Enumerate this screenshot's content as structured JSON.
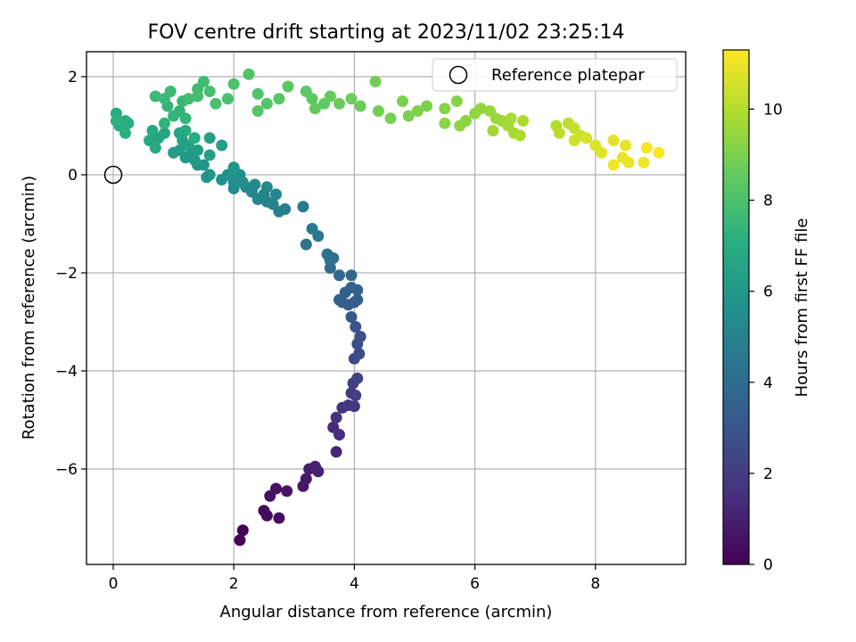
{
  "chart_data": {
    "type": "scatter",
    "title": "FOV centre drift starting at 2023/11/02 23:25:14",
    "xlabel": "Angular distance from reference (arcmin)",
    "ylabel": "Rotation from reference (arcmin)",
    "xlim": [
      -0.45,
      9.5
    ],
    "ylim": [
      -7.95,
      2.55
    ],
    "xticks": [
      0,
      2,
      4,
      6,
      8
    ],
    "yticks": [
      -6,
      -4,
      -2,
      0,
      2
    ],
    "xtick_labels": [
      "0",
      "2",
      "4",
      "6",
      "8"
    ],
    "ytick_labels": [
      "−6",
      "−4",
      "−2",
      "0",
      "2"
    ],
    "grid": true,
    "colormap": "viridis",
    "colorbar": {
      "label": "Hours from first FF file",
      "min": 0,
      "max": 11.3,
      "ticks": [
        0,
        2,
        4,
        6,
        8,
        10
      ],
      "tick_labels": [
        "0",
        "2",
        "4",
        "6",
        "8",
        "10"
      ]
    },
    "legend": {
      "placement": "top-right",
      "label": "Reference platepar"
    },
    "reference_point": {
      "x": 0,
      "y": 0
    },
    "points": [
      [
        2.15,
        -7.25,
        0.05
      ],
      [
        2.1,
        -7.45,
        0.1
      ],
      [
        2.5,
        -6.85,
        0.3
      ],
      [
        2.55,
        -6.95,
        0.35
      ],
      [
        2.75,
        -7.0,
        0.4
      ],
      [
        2.6,
        -6.55,
        0.5
      ],
      [
        2.7,
        -6.4,
        0.55
      ],
      [
        2.88,
        -6.45,
        0.6
      ],
      [
        3.15,
        -6.35,
        0.75
      ],
      [
        3.2,
        -6.2,
        0.8
      ],
      [
        3.25,
        -6.0,
        0.9
      ],
      [
        3.35,
        -5.95,
        1.0
      ],
      [
        3.4,
        -6.05,
        1.05
      ],
      [
        3.7,
        -5.65,
        1.2
      ],
      [
        3.65,
        -5.15,
        1.35
      ],
      [
        3.75,
        -5.3,
        1.45
      ],
      [
        3.7,
        -4.95,
        1.55
      ],
      [
        3.8,
        -4.75,
        1.65
      ],
      [
        3.9,
        -4.7,
        1.75
      ],
      [
        4.0,
        -4.72,
        1.85
      ],
      [
        3.95,
        -4.45,
        1.95
      ],
      [
        4.02,
        -4.5,
        2.05
      ],
      [
        3.98,
        -4.25,
        2.15
      ],
      [
        4.05,
        -4.15,
        2.25
      ],
      [
        4.0,
        -3.75,
        2.4
      ],
      [
        4.08,
        -3.65,
        2.55
      ],
      [
        4.05,
        -3.45,
        2.65
      ],
      [
        4.1,
        -3.3,
        2.75
      ],
      [
        4.02,
        -3.1,
        2.85
      ],
      [
        3.95,
        -2.9,
        3.0
      ],
      [
        4.0,
        -2.6,
        3.15
      ],
      [
        4.05,
        -2.55,
        3.25
      ],
      [
        3.9,
        -2.65,
        3.35
      ],
      [
        3.8,
        -2.6,
        3.4
      ],
      [
        3.75,
        -2.55,
        3.45
      ],
      [
        3.85,
        -2.4,
        3.5
      ],
      [
        3.95,
        -2.3,
        3.55
      ],
      [
        4.05,
        -2.35,
        3.6
      ],
      [
        3.95,
        -2.05,
        3.75
      ],
      [
        3.75,
        -2.05,
        3.85
      ],
      [
        3.6,
        -1.9,
        3.95
      ],
      [
        3.65,
        -1.7,
        4.05
      ],
      [
        3.55,
        -1.62,
        4.15
      ],
      [
        3.6,
        -1.75,
        4.2
      ],
      [
        3.2,
        -1.42,
        4.3
      ],
      [
        3.4,
        -1.25,
        4.4
      ],
      [
        3.3,
        -1.1,
        4.5
      ],
      [
        3.15,
        -0.65,
        4.6
      ],
      [
        2.85,
        -0.7,
        4.75
      ],
      [
        2.75,
        -0.75,
        4.85
      ],
      [
        2.65,
        -0.6,
        4.95
      ],
      [
        2.55,
        -0.55,
        5.0
      ],
      [
        2.4,
        -0.5,
        5.05
      ],
      [
        2.5,
        -0.4,
        5.1
      ],
      [
        2.3,
        -0.35,
        5.15
      ],
      [
        2.7,
        -0.4,
        5.2
      ],
      [
        2.55,
        -0.25,
        5.25
      ],
      [
        2.35,
        -0.2,
        5.3
      ],
      [
        2.2,
        -0.25,
        5.35
      ],
      [
        2.0,
        -0.28,
        5.4
      ],
      [
        2.15,
        -0.15,
        5.45
      ],
      [
        2.0,
        -0.15,
        5.5
      ],
      [
        2.1,
        0.0,
        5.55
      ],
      [
        1.9,
        0.0,
        5.6
      ],
      [
        1.8,
        -0.1,
        5.65
      ],
      [
        2.0,
        0.05,
        5.7
      ],
      [
        2.0,
        0.15,
        5.75
      ],
      [
        1.6,
        0.0,
        5.8
      ],
      [
        1.55,
        -0.05,
        5.85
      ],
      [
        1.5,
        0.2,
        5.9
      ],
      [
        1.4,
        0.2,
        5.95
      ],
      [
        1.35,
        0.3,
        6.0
      ],
      [
        1.3,
        0.45,
        6.05
      ],
      [
        1.2,
        0.35,
        6.1
      ],
      [
        1.1,
        0.5,
        6.15
      ],
      [
        1.0,
        0.45,
        6.2
      ],
      [
        1.4,
        0.5,
        6.25
      ],
      [
        1.6,
        0.4,
        6.3
      ],
      [
        1.8,
        0.6,
        6.35
      ],
      [
        1.6,
        0.75,
        6.4
      ],
      [
        1.25,
        0.6,
        6.45
      ],
      [
        1.15,
        0.7,
        6.5
      ],
      [
        1.1,
        0.85,
        6.55
      ],
      [
        0.85,
        0.85,
        6.6
      ],
      [
        0.75,
        0.75,
        6.65
      ],
      [
        0.6,
        0.7,
        6.7
      ],
      [
        0.65,
        0.9,
        6.75
      ],
      [
        0.7,
        0.55,
        6.8
      ],
      [
        1.2,
        0.9,
        6.85
      ],
      [
        1.35,
        0.75,
        6.9
      ],
      [
        0.05,
        1.25,
        6.95
      ],
      [
        0.1,
        1.0,
        7.0
      ],
      [
        0.2,
        1.1,
        7.05
      ],
      [
        0.25,
        1.05,
        7.1
      ],
      [
        0.2,
        0.85,
        7.15
      ],
      [
        0.05,
        1.1,
        7.2
      ],
      [
        0.85,
        1.05,
        7.25
      ],
      [
        1.0,
        1.2,
        7.3
      ],
      [
        1.1,
        1.3,
        7.35
      ],
      [
        1.2,
        1.15,
        7.4
      ],
      [
        0.9,
        1.4,
        7.45
      ],
      [
        1.15,
        1.5,
        7.5
      ],
      [
        0.85,
        1.55,
        7.55
      ],
      [
        0.7,
        1.6,
        7.6
      ],
      [
        0.95,
        1.7,
        7.65
      ],
      [
        1.4,
        1.75,
        7.7
      ],
      [
        1.5,
        1.9,
        7.75
      ],
      [
        1.25,
        1.55,
        7.8
      ],
      [
        1.4,
        1.6,
        7.85
      ],
      [
        1.6,
        1.7,
        7.9
      ],
      [
        1.7,
        1.45,
        7.95
      ],
      [
        1.9,
        1.55,
        8.0
      ],
      [
        2.0,
        1.85,
        8.05
      ],
      [
        2.25,
        2.05,
        8.1
      ],
      [
        2.4,
        1.65,
        8.15
      ],
      [
        2.55,
        1.45,
        8.2
      ],
      [
        2.4,
        1.3,
        8.25
      ],
      [
        2.75,
        1.55,
        8.3
      ],
      [
        2.9,
        1.8,
        8.35
      ],
      [
        3.2,
        1.7,
        8.4
      ],
      [
        3.3,
        1.55,
        8.45
      ],
      [
        3.5,
        1.45,
        8.5
      ],
      [
        3.35,
        1.35,
        8.55
      ],
      [
        3.6,
        1.6,
        8.6
      ],
      [
        3.75,
        1.45,
        8.65
      ],
      [
        3.95,
        1.55,
        8.7
      ],
      [
        4.1,
        1.4,
        8.75
      ],
      [
        4.35,
        1.9,
        8.8
      ],
      [
        4.4,
        1.3,
        8.85
      ],
      [
        4.6,
        1.15,
        8.9
      ],
      [
        4.8,
        1.5,
        8.95
      ],
      [
        4.9,
        1.2,
        9.0
      ],
      [
        5.2,
        1.4,
        9.05
      ],
      [
        5.05,
        1.3,
        9.1
      ],
      [
        5.5,
        1.35,
        9.15
      ],
      [
        5.7,
        1.5,
        9.2
      ],
      [
        5.85,
        1.1,
        9.25
      ],
      [
        5.5,
        1.05,
        9.3
      ],
      [
        5.75,
        1.0,
        9.35
      ],
      [
        6.0,
        1.25,
        9.4
      ],
      [
        6.1,
        1.35,
        9.45
      ],
      [
        6.25,
        1.3,
        9.5
      ],
      [
        6.35,
        1.15,
        9.55
      ],
      [
        6.45,
        1.1,
        9.6
      ],
      [
        6.3,
        0.9,
        9.65
      ],
      [
        6.55,
        1.0,
        9.7
      ],
      [
        6.65,
        0.85,
        9.75
      ],
      [
        6.6,
        1.15,
        9.8
      ],
      [
        6.8,
        1.1,
        9.85
      ],
      [
        6.75,
        0.8,
        9.9
      ],
      [
        7.35,
        1.0,
        10.0
      ],
      [
        7.4,
        0.85,
        10.1
      ],
      [
        7.55,
        1.05,
        10.2
      ],
      [
        7.65,
        0.95,
        10.3
      ],
      [
        7.75,
        0.8,
        10.4
      ],
      [
        7.65,
        0.7,
        10.5
      ],
      [
        7.85,
        0.75,
        10.6
      ],
      [
        8.0,
        0.6,
        10.7
      ],
      [
        8.1,
        0.45,
        10.8
      ],
      [
        8.3,
        0.7,
        10.85
      ],
      [
        8.5,
        0.6,
        10.9
      ],
      [
        8.45,
        0.35,
        10.95
      ],
      [
        8.55,
        0.25,
        11.0
      ],
      [
        8.3,
        0.2,
        11.05
      ],
      [
        8.8,
        0.25,
        11.1
      ],
      [
        8.85,
        0.55,
        11.15
      ],
      [
        9.05,
        0.45,
        11.25
      ]
    ]
  }
}
